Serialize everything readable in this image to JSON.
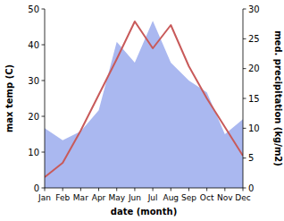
{
  "chart_data": {
    "type": "line",
    "categories": [
      "Jan",
      "Feb",
      "Mar",
      "Apr",
      "May",
      "Jun",
      "Jul",
      "Aug",
      "Sep",
      "Oct",
      "Nov",
      "Dec"
    ],
    "xlabel": "date (month)",
    "ylabel": "max temp (C)",
    "y2label": "med. precipitation (kg/m2)",
    "ylim": [
      0,
      50
    ],
    "yticks": [
      0,
      10,
      20,
      30,
      40,
      50
    ],
    "y2lim": [
      0,
      30
    ],
    "y2ticks": [
      0,
      5,
      10,
      15,
      20,
      25,
      30
    ],
    "series": [
      {
        "type": "area",
        "axis": "y2",
        "color": "#aab8f0",
        "values": [
          10,
          8,
          9.5,
          13,
          24.5,
          21,
          28,
          21,
          18,
          16,
          9,
          11.5
        ]
      },
      {
        "type": "line",
        "color": "#c85a5a",
        "values": [
          3,
          7,
          16,
          26,
          36,
          46.5,
          39,
          45.5,
          34,
          25,
          17,
          9
        ]
      }
    ]
  }
}
